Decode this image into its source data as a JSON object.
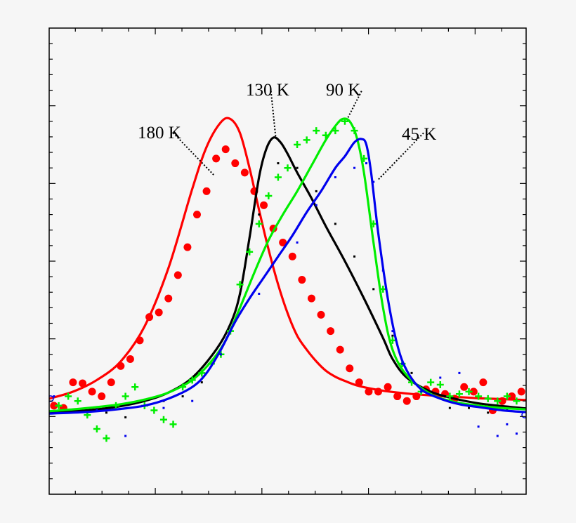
{
  "chart_data": {
    "type": "line",
    "title": "",
    "xlabel": "",
    "ylabel": "",
    "xlim": [
      0,
      100
    ],
    "ylim": [
      0,
      100
    ],
    "grid": false,
    "legend": "none (inline annotations)",
    "x_ticks_major": [
      22.2,
      44.6,
      66.8,
      89.2
    ],
    "tick_labels_visible": false,
    "annotations": [
      {
        "text": "180 K",
        "label_x": 26,
        "label_y": 77.5,
        "point_x": 34.5,
        "point_y": 68.5
      },
      {
        "text": "130 K",
        "label_x": 46.5,
        "label_y": 86.5,
        "point_x": 47.5,
        "point_y": 76.5
      },
      {
        "text": "90 K",
        "label_x": 65.5,
        "label_y": 86.5,
        "point_x": 62.5,
        "point_y": 80.5
      },
      {
        "text": "45 K",
        "label_x": 78.5,
        "label_y": 77.5,
        "point_x": 69,
        "point_y": 67.5
      }
    ],
    "series": [
      {
        "name": "180 K",
        "color": "#ff0000",
        "marker": "circle",
        "fit_x": [
          0,
          5,
          10,
          15,
          20,
          25,
          30,
          33,
          36,
          38,
          40,
          42,
          44,
          46,
          48,
          50,
          52,
          54,
          56,
          58,
          60,
          62,
          65,
          70,
          75,
          80,
          85,
          90,
          95,
          100
        ],
        "fit_y": [
          20.5,
          22,
          24.5,
          28.5,
          36,
          48.5,
          65.5,
          74.5,
          79.8,
          80.5,
          77.5,
          70,
          61,
          52.5,
          45,
          38.8,
          34,
          31,
          28.5,
          26.5,
          25.2,
          24.3,
          23.2,
          22.2,
          21.6,
          21.2,
          20.9,
          20.6,
          20.4,
          20.2
        ],
        "points_x": [
          1,
          3,
          5,
          7,
          9,
          11,
          13,
          15,
          17,
          19,
          21,
          23,
          25,
          27,
          29,
          31,
          33,
          35,
          37,
          39,
          41,
          43,
          45,
          47,
          49,
          51,
          53,
          55,
          57,
          59,
          61,
          63,
          65,
          67,
          69,
          71,
          73,
          75,
          77,
          79,
          81,
          83,
          85,
          87,
          89,
          91,
          93,
          95,
          97,
          99
        ],
        "points_y": [
          19,
          18.5,
          24,
          23.8,
          22,
          21,
          24,
          27.5,
          29,
          33,
          38,
          39,
          42,
          47,
          53,
          60,
          65,
          72,
          74,
          71,
          69,
          65,
          62,
          57,
          54,
          51,
          46,
          42,
          38.5,
          35,
          31,
          27,
          24,
          22,
          22,
          23,
          21,
          20,
          21,
          22.5,
          22,
          21.5,
          20.5,
          23,
          22,
          24,
          18,
          20,
          21,
          22
        ]
      },
      {
        "name": "130 K",
        "color": "#000000",
        "marker": "dot",
        "fit_x": [
          0,
          5,
          10,
          15,
          20,
          25,
          30,
          35,
          38,
          40,
          42,
          44,
          45.5,
          47,
          48.5,
          50,
          52,
          55,
          58,
          62,
          66,
          70,
          72,
          75,
          80,
          85,
          90,
          95,
          100
        ],
        "fit_y": [
          17.5,
          17.8,
          18.2,
          18.9,
          20,
          21.8,
          25,
          31,
          36.5,
          43,
          55,
          68,
          74,
          76.5,
          75.5,
          73,
          69,
          63.5,
          57.5,
          50,
          42,
          33.5,
          29,
          25,
          22,
          20.5,
          19.5,
          18.9,
          18.4
        ],
        "points_x": [
          4,
          8,
          12,
          16,
          20,
          24,
          28,
          32,
          36,
          40,
          44,
          48,
          52,
          56,
          60,
          64,
          68,
          72,
          76,
          80,
          84,
          88,
          92,
          96
        ],
        "points_y": [
          18,
          17,
          17.5,
          16.5,
          19,
          20,
          21,
          24,
          30,
          43,
          60,
          71,
          70,
          65,
          58,
          51,
          44,
          34,
          26,
          22,
          18.5,
          18.5,
          17.5,
          18
        ]
      },
      {
        "name": "90 K",
        "color": "#00ee00",
        "marker": "plus",
        "fit_x": [
          0,
          5,
          10,
          15,
          20,
          25,
          30,
          34,
          37,
          40,
          43,
          46,
          49,
          52,
          55,
          58,
          60,
          61.5,
          63,
          64.5,
          66,
          68,
          70,
          72,
          75,
          80,
          85,
          90,
          95,
          100
        ],
        "fit_y": [
          17.8,
          18.2,
          18.7,
          19.3,
          20.3,
          21.8,
          24.5,
          28.5,
          33,
          40,
          47.5,
          54.5,
          60,
          65,
          70.5,
          76,
          79,
          80.5,
          80,
          76.5,
          69,
          54,
          40,
          31,
          25.5,
          21.5,
          19.8,
          19,
          18.5,
          18.2
        ],
        "points_x": [
          2,
          4,
          6,
          8,
          10,
          12,
          14,
          16,
          18,
          20,
          22,
          24,
          26,
          28,
          30,
          32,
          34,
          36,
          38,
          40,
          42,
          44,
          46,
          48,
          50,
          52,
          54,
          56,
          58,
          60,
          62,
          64,
          66,
          68,
          70,
          72,
          74,
          76,
          78,
          80,
          82,
          84,
          86,
          88,
          90,
          92,
          94,
          96,
          98
        ],
        "points_y": [
          19,
          21,
          20,
          17,
          14,
          12,
          19,
          21,
          23,
          19,
          18,
          16,
          15,
          23,
          24.5,
          26,
          28,
          30,
          35,
          45,
          52,
          58,
          64,
          68,
          70,
          75,
          76,
          78,
          77,
          78,
          80,
          78,
          72,
          58,
          44,
          33,
          28,
          24,
          22,
          24,
          23.5,
          21,
          21.5,
          22,
          21,
          20.5,
          20,
          21,
          20
        ]
      },
      {
        "name": "45 K",
        "color": "#0000ee",
        "marker": "dot",
        "fit_x": [
          0,
          5,
          10,
          15,
          20,
          25,
          30,
          33,
          36,
          39,
          42,
          45,
          48,
          51,
          54,
          57,
          60,
          62,
          64,
          65.5,
          66.5,
          67.5,
          69,
          71,
          73,
          75,
          78,
          82,
          86,
          90,
          95,
          100
        ],
        "fit_y": [
          17.3,
          17.5,
          17.8,
          18.3,
          19,
          20.5,
          23,
          26,
          31,
          37,
          42,
          46.5,
          51,
          55.5,
          60.5,
          65,
          70,
          72.5,
          75.5,
          76.2,
          75,
          69,
          56,
          42,
          32,
          26.5,
          22.5,
          20.5,
          19.3,
          18.7,
          18,
          17.6
        ],
        "points_x": [
          1,
          10,
          16,
          24,
          30,
          36,
          44,
          52,
          56,
          60,
          64,
          66.5,
          68,
          70,
          72,
          74,
          78,
          82,
          86,
          90,
          94,
          96,
          98
        ],
        "points_y": [
          21,
          18,
          12.5,
          18.5,
          20,
          30,
          43,
          54,
          62,
          68,
          70,
          71,
          67,
          48,
          35,
          28,
          22,
          25,
          26,
          14.5,
          12.5,
          15,
          13
        ]
      }
    ]
  },
  "annotation_labels": {
    "k180": "180 K",
    "k130": "130 K",
    "k90": "90 K",
    "k45": "45 K"
  }
}
